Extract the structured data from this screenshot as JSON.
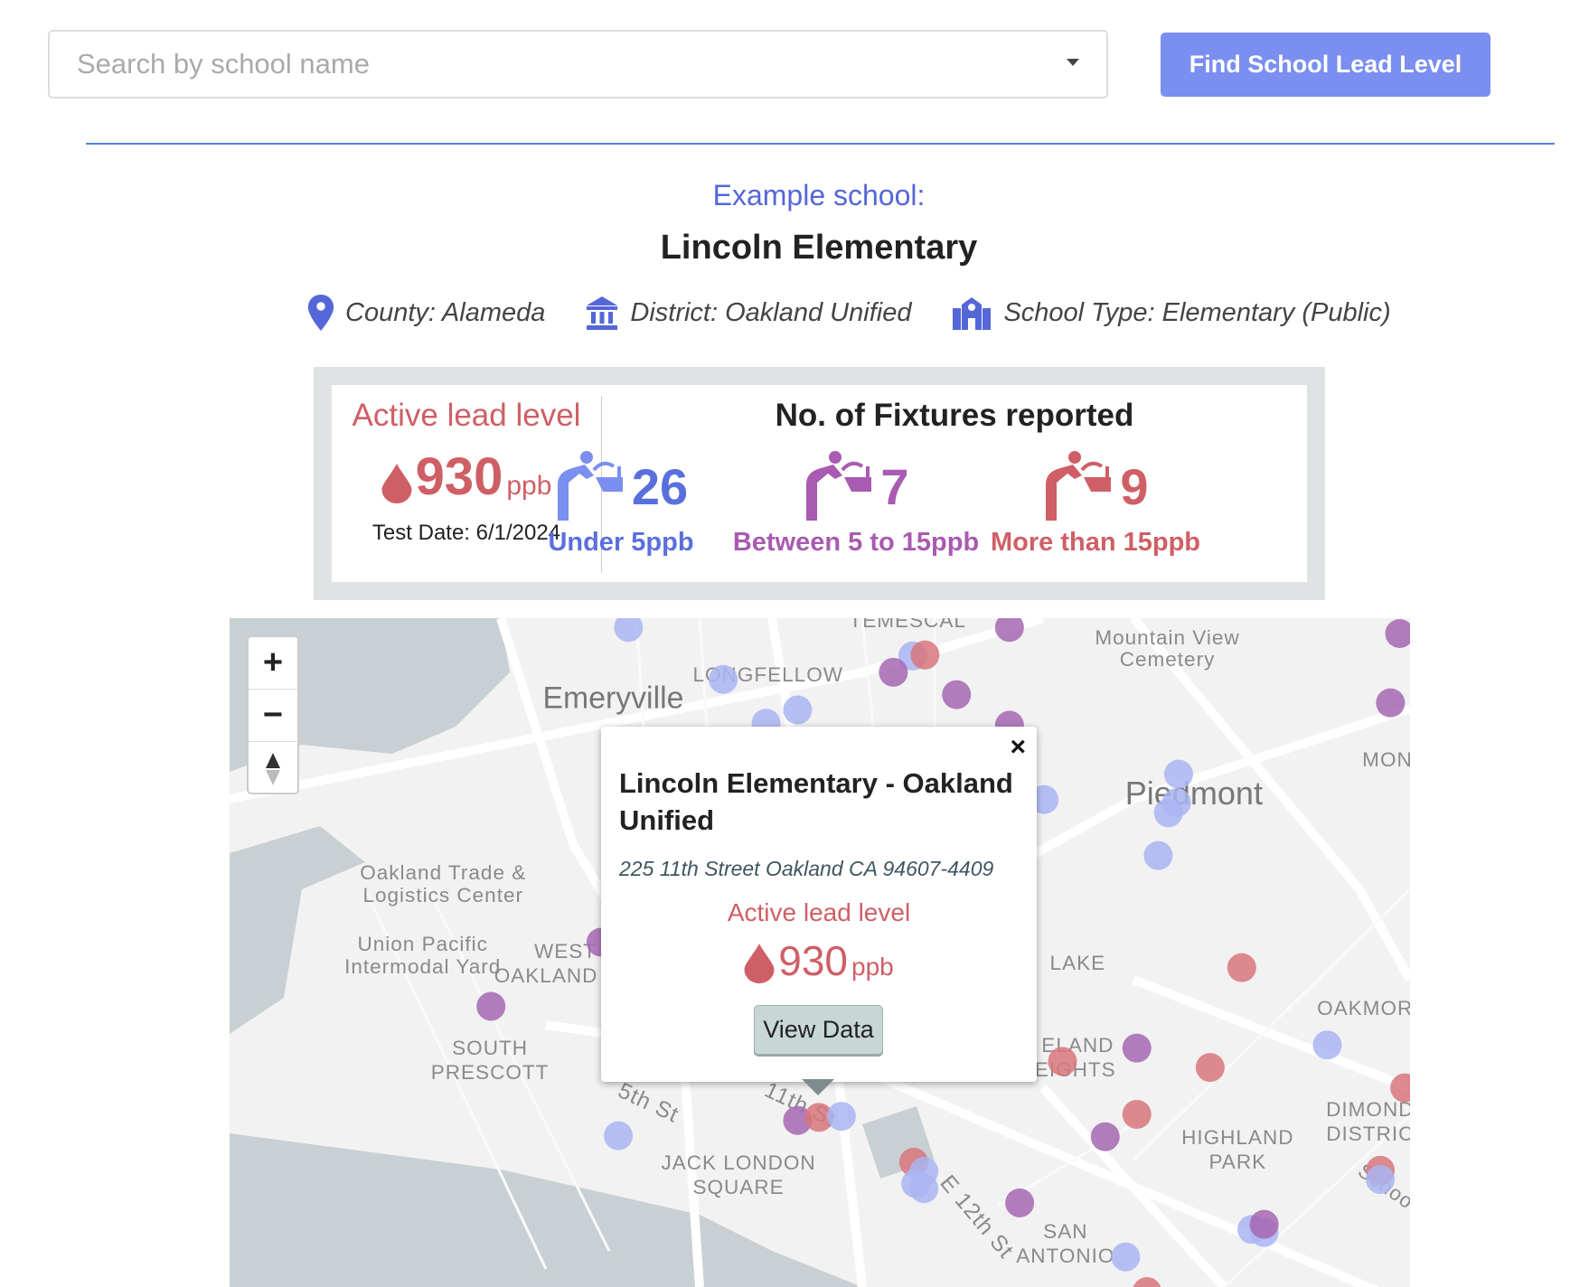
{
  "search": {
    "placeholder": "Search by school name",
    "button_label": "Find School Lead Level"
  },
  "school": {
    "example_label": "Example school:",
    "name": "Lincoln Elementary",
    "county": "County: Alameda",
    "district": "District: Oakland Unified",
    "school_type": "School Type: Elementary (Public)"
  },
  "stats": {
    "active_title": "Active lead level",
    "lead_value": "930",
    "lead_unit": "ppb",
    "test_date": "Test Date: 6/1/2024",
    "fixtures_title": "No. of Fixtures reported",
    "fixtures": [
      {
        "count": "26",
        "label": "Under 5ppb",
        "color": "#5b6fdc",
        "icon_color": "#7b8ff0"
      },
      {
        "count": "7",
        "label": "Between 5 to 15ppb",
        "color": "#a85bb0",
        "icon_color": "#a85bb0"
      },
      {
        "count": "9",
        "label": "More than 15ppb",
        "color": "#cf5f66",
        "icon_color": "#cf5f66"
      }
    ]
  },
  "map": {
    "colors": {
      "under": "#a9b5f2",
      "between": "#a467b3",
      "over": "#d8767b",
      "land": "#f2f2f2",
      "water": "#c9d0d3"
    },
    "controls": {
      "zoom_in": "+",
      "zoom_out": "−"
    },
    "labels": [
      "TEMESCAL",
      "Mountain View",
      "Cemetery",
      "LONGFELLOW",
      "Emeryville",
      "MON",
      "Piedmont",
      "Oakland Trade &",
      "Logistics Center",
      "Union Pacific",
      "Intermodal Yard",
      "WEST",
      "OAKLAND",
      "LAKE",
      "OAKMOR",
      "SOUTH",
      "PRESCOTT",
      "ELAND",
      "HEIGHTS",
      "5th St",
      "11th St",
      "DIMOND",
      "DISTRIC",
      "HIGHLAND",
      "PARK",
      "JACK LONDON",
      "SQUARE",
      "E 12th St",
      "SAN",
      "ANTONIO",
      "Schoo"
    ],
    "popup": {
      "title": "Lincoln Elementary - Oakland Unified",
      "address": "225 11th Street Oakland CA 94607-4409",
      "active_title": "Active lead level",
      "lead_value": "930",
      "lead_unit": "ppb",
      "button_label": "View Data",
      "close": "×"
    }
  }
}
